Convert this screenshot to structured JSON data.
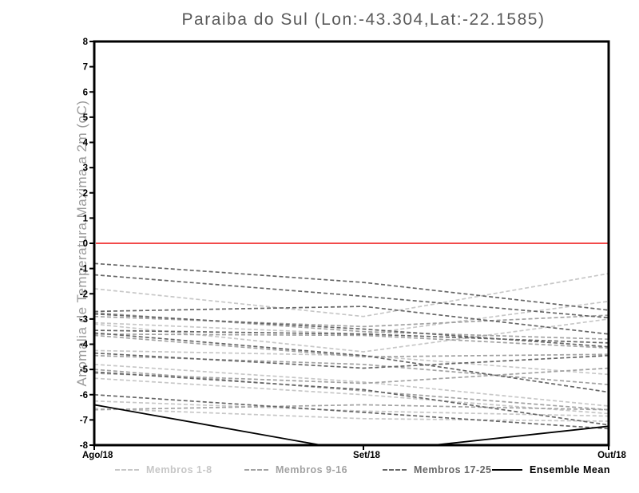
{
  "chart_data": {
    "type": "line",
    "title": "Paraiba do Sul (Lon:-43.304,Lat:-22.1585)",
    "ylabel": "Anomalia de Temperatura Maxima a 2m (oC)",
    "x_categories": [
      "Ago/18",
      "Set/18",
      "Out/18"
    ],
    "ylim": [
      -8,
      8
    ],
    "ytick_step": 1,
    "grid": false,
    "legend_position": "bottom",
    "zero_line": {
      "value": 0,
      "color": "#f24a4a"
    },
    "axis_color": "#000000",
    "groups": [
      {
        "name": "Membros 1-8",
        "color": "#c7c7c7",
        "style": "dashed"
      },
      {
        "name": "Membros 9-16",
        "color": "#a2a2a2",
        "style": "dashed"
      },
      {
        "name": "Membros 17-25",
        "color": "#666666",
        "style": "dashed"
      },
      {
        "name": "Ensemble Mean",
        "color": "#000000",
        "style": "solid"
      }
    ],
    "series": [
      {
        "group": 0,
        "values": [
          -1.8,
          -2.9,
          -1.2
        ]
      },
      {
        "group": 0,
        "values": [
          -3.15,
          -3.6,
          -2.3
        ]
      },
      {
        "group": 0,
        "values": [
          -3.2,
          -4.3,
          -3.0
        ]
      },
      {
        "group": 0,
        "values": [
          -4.25,
          -4.45,
          -5.2
        ]
      },
      {
        "group": 0,
        "values": [
          -4.8,
          -5.5,
          -6.45
        ]
      },
      {
        "group": 0,
        "values": [
          -5.35,
          -6.0,
          -6.75
        ]
      },
      {
        "group": 0,
        "values": [
          -6.25,
          -6.65,
          -6.85
        ]
      },
      {
        "group": 0,
        "values": [
          -6.55,
          -6.95,
          -7.05
        ]
      },
      {
        "group": 1,
        "values": [
          -2.9,
          -3.3,
          -2.85
        ]
      },
      {
        "group": 1,
        "values": [
          -2.75,
          -3.5,
          -3.8
        ]
      },
      {
        "group": 1,
        "values": [
          -3.6,
          -3.65,
          -4.15
        ]
      },
      {
        "group": 1,
        "values": [
          -3.65,
          -4.5,
          -4.4
        ]
      },
      {
        "group": 1,
        "values": [
          -4.45,
          -4.8,
          -5.6
        ]
      },
      {
        "group": 1,
        "values": [
          -5.0,
          -5.85,
          -6.6
        ]
      },
      {
        "group": 1,
        "values": [
          -5.15,
          -5.55,
          -4.95
        ]
      },
      {
        "group": 1,
        "values": [
          -6.6,
          -6.4,
          -6.6
        ]
      },
      {
        "group": 2,
        "values": [
          -0.8,
          -1.55,
          -2.65
        ]
      },
      {
        "group": 2,
        "values": [
          -1.25,
          -2.1,
          -2.95
        ]
      },
      {
        "group": 2,
        "values": [
          -2.7,
          -2.5,
          -3.6
        ]
      },
      {
        "group": 2,
        "values": [
          -2.8,
          -3.4,
          -4.1
        ]
      },
      {
        "group": 2,
        "values": [
          -3.45,
          -3.6,
          -3.95
        ]
      },
      {
        "group": 2,
        "values": [
          -3.55,
          -4.45,
          -5.9
        ]
      },
      {
        "group": 2,
        "values": [
          -4.35,
          -4.95,
          -4.45
        ]
      },
      {
        "group": 2,
        "values": [
          -5.1,
          -5.8,
          -7.2
        ]
      },
      {
        "group": 2,
        "values": [
          -6.0,
          -6.7,
          -7.35
        ]
      },
      {
        "group": 3,
        "values": [
          -6.4,
          -8.3,
          -7.25
        ]
      }
    ]
  }
}
